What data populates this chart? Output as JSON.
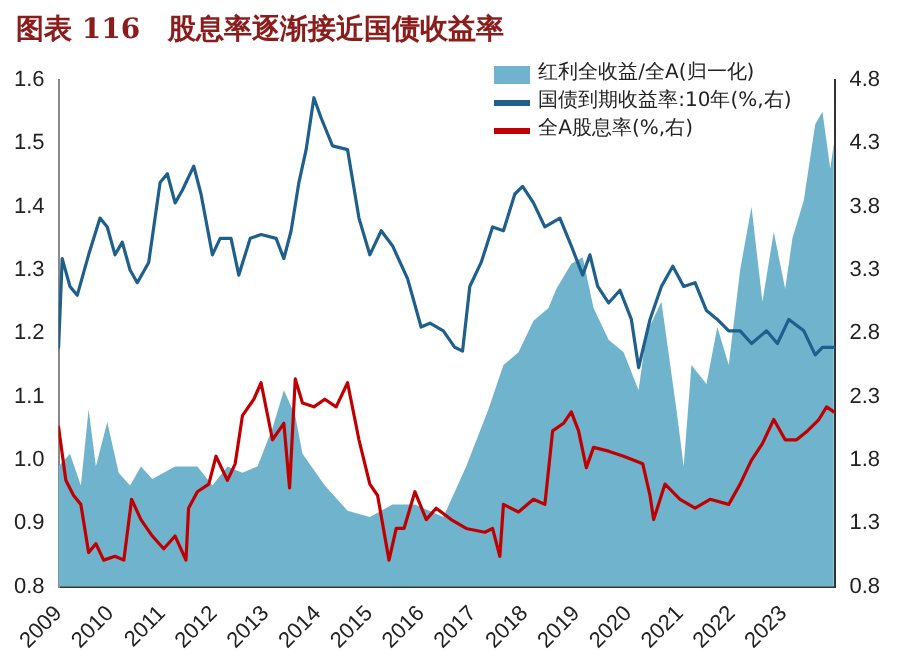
{
  "chart_data": {
    "type": "line",
    "title": "图表 116　股息率逐渐接近国债收益率",
    "legend": "top right",
    "grid": false,
    "marker": "none",
    "xlim": [
      2009,
      2024
    ],
    "xticks": [
      2009,
      2010,
      2011,
      2012,
      2013,
      2014,
      2015,
      2016,
      2017,
      2018,
      2019,
      2020,
      2021,
      2022,
      2023
    ],
    "ylim": [
      0.8,
      1.6
    ],
    "yticks": [
      0.8,
      0.9,
      {
        "value": 1.0,
        "label": "1.0"
      },
      1.1,
      1.2,
      1.3,
      1.4,
      1.5,
      1.6
    ],
    "y2lim": [
      0.8,
      4.8
    ],
    "y2ticks": [
      0.8,
      1.3,
      1.8,
      2.3,
      2.8,
      3.3,
      3.8,
      4.3,
      4.8
    ],
    "series": [
      {
        "type": "area",
        "name": "红利全收益/全A(归一化)",
        "color": "#6fb3cc",
        "x": [
          2009.0,
          2009.22,
          2009.43,
          2009.58,
          2009.72,
          2009.94,
          2010.16,
          2010.38,
          2010.59,
          2010.81,
          2011.25,
          2011.68,
          2011.97,
          2012.26,
          2012.55,
          2012.84,
          2013.13,
          2013.35,
          2013.57,
          2013.71,
          2014.14,
          2014.58,
          2015.01,
          2015.45,
          2015.88,
          2016.43,
          2016.87,
          2017.3,
          2017.59,
          2017.88,
          2018.17,
          2018.46,
          2018.61,
          2018.9,
          2019.12,
          2019.33,
          2019.62,
          2019.91,
          2020.2,
          2020.35,
          2020.64,
          2020.93,
          2021.07,
          2021.22,
          2021.51,
          2021.72,
          2021.94,
          2022.16,
          2022.38,
          2022.59,
          2022.81,
          2023.03,
          2023.17,
          2023.39,
          2023.61,
          2023.75,
          2023.9,
          2023.97
        ],
        "values": [
          0.99,
          1.01,
          0.96,
          1.08,
          0.99,
          1.06,
          0.98,
          0.96,
          0.99,
          0.97,
          0.99,
          0.99,
          0.96,
          0.99,
          0.98,
          0.99,
          1.05,
          1.11,
          1.07,
          1.01,
          0.96,
          0.92,
          0.91,
          0.93,
          0.93,
          0.91,
          0.99,
          1.08,
          1.15,
          1.17,
          1.22,
          1.24,
          1.27,
          1.31,
          1.32,
          1.24,
          1.19,
          1.17,
          1.11,
          1.2,
          1.25,
          1.08,
          0.99,
          1.15,
          1.12,
          1.21,
          1.15,
          1.3,
          1.4,
          1.25,
          1.36,
          1.27,
          1.35,
          1.41,
          1.53,
          1.55,
          1.46,
          1.5
        ]
      },
      {
        "type": "line",
        "axis": "y2",
        "name": "国债到期收益率:10年(%,右)",
        "color": "#1f5f8b",
        "x": [
          2009.0,
          2009.07,
          2009.22,
          2009.36,
          2009.58,
          2009.8,
          2009.94,
          2010.09,
          2010.23,
          2010.38,
          2010.52,
          2010.74,
          2010.96,
          2011.1,
          2011.25,
          2011.39,
          2011.61,
          2011.75,
          2011.97,
          2012.12,
          2012.33,
          2012.48,
          2012.7,
          2012.91,
          2013.2,
          2013.35,
          2013.49,
          2013.64,
          2013.78,
          2013.93,
          2014.07,
          2014.29,
          2014.58,
          2014.8,
          2015.01,
          2015.23,
          2015.45,
          2015.74,
          2016.0,
          2016.17,
          2016.43,
          2016.65,
          2016.8,
          2016.94,
          2017.16,
          2017.38,
          2017.59,
          2017.81,
          2017.96,
          2018.17,
          2018.39,
          2018.68,
          2018.9,
          2019.12,
          2019.26,
          2019.41,
          2019.62,
          2019.84,
          2020.06,
          2020.2,
          2020.42,
          2020.64,
          2020.86,
          2021.07,
          2021.29,
          2021.51,
          2021.72,
          2021.94,
          2022.16,
          2022.38,
          2022.67,
          2022.88,
          2023.1,
          2023.39,
          2023.61,
          2023.75,
          2023.97
        ],
        "values": [
          2.69,
          3.39,
          3.17,
          3.1,
          3.42,
          3.71,
          3.64,
          3.42,
          3.52,
          3.3,
          3.2,
          3.36,
          3.99,
          4.06,
          3.83,
          3.93,
          4.12,
          3.9,
          3.42,
          3.55,
          3.55,
          3.26,
          3.55,
          3.58,
          3.55,
          3.39,
          3.61,
          3.99,
          4.25,
          4.66,
          4.5,
          4.28,
          4.25,
          3.71,
          3.42,
          3.61,
          3.49,
          3.23,
          2.85,
          2.88,
          2.82,
          2.69,
          2.66,
          3.17,
          3.36,
          3.64,
          3.61,
          3.9,
          3.96,
          3.83,
          3.64,
          3.71,
          3.49,
          3.26,
          3.42,
          3.17,
          3.04,
          3.14,
          2.91,
          2.53,
          2.91,
          3.17,
          3.33,
          3.17,
          3.2,
          2.98,
          2.91,
          2.82,
          2.82,
          2.72,
          2.82,
          2.72,
          2.91,
          2.82,
          2.63,
          2.69,
          2.69
        ]
      },
      {
        "type": "line",
        "axis": "y2",
        "name": "全A股息率(%,右)",
        "color": "#c00000",
        "x": [
          2009.0,
          2009.14,
          2009.29,
          2009.43,
          2009.58,
          2009.72,
          2009.87,
          2010.09,
          2010.26,
          2010.41,
          2010.59,
          2010.81,
          2011.03,
          2011.25,
          2011.46,
          2011.51,
          2011.68,
          2011.9,
          2012.04,
          2012.26,
          2012.41,
          2012.55,
          2012.77,
          2012.91,
          2013.13,
          2013.35,
          2013.46,
          2013.57,
          2013.71,
          2013.93,
          2014.14,
          2014.36,
          2014.58,
          2014.8,
          2015.01,
          2015.16,
          2015.38,
          2015.52,
          2015.67,
          2015.88,
          2016.1,
          2016.29,
          2016.58,
          2016.87,
          2017.23,
          2017.38,
          2017.52,
          2017.59,
          2017.88,
          2018.17,
          2018.39,
          2018.54,
          2018.75,
          2018.9,
          2019.04,
          2019.19,
          2019.33,
          2019.62,
          2019.91,
          2020.28,
          2020.42,
          2020.49,
          2020.71,
          2021.0,
          2021.29,
          2021.58,
          2021.94,
          2022.16,
          2022.38,
          2022.59,
          2022.81,
          2023.03,
          2023.25,
          2023.46,
          2023.68,
          2023.83,
          2023.97
        ],
        "values": [
          2.06,
          1.64,
          1.52,
          1.45,
          1.07,
          1.14,
          1.01,
          1.04,
          1.01,
          1.49,
          1.33,
          1.2,
          1.1,
          1.2,
          1.01,
          1.42,
          1.55,
          1.61,
          1.83,
          1.64,
          1.77,
          2.15,
          2.28,
          2.41,
          1.96,
          2.09,
          1.58,
          2.44,
          2.25,
          2.22,
          2.28,
          2.22,
          2.41,
          1.96,
          1.61,
          1.52,
          1.01,
          1.26,
          1.26,
          1.55,
          1.33,
          1.42,
          1.33,
          1.26,
          1.23,
          1.26,
          1.04,
          1.45,
          1.39,
          1.49,
          1.45,
          2.03,
          2.09,
          2.18,
          2.03,
          1.74,
          1.9,
          1.87,
          1.83,
          1.77,
          1.52,
          1.33,
          1.61,
          1.49,
          1.42,
          1.49,
          1.45,
          1.61,
          1.8,
          1.93,
          2.12,
          1.96,
          1.96,
          2.03,
          2.12,
          2.22,
          2.18
        ]
      }
    ]
  }
}
